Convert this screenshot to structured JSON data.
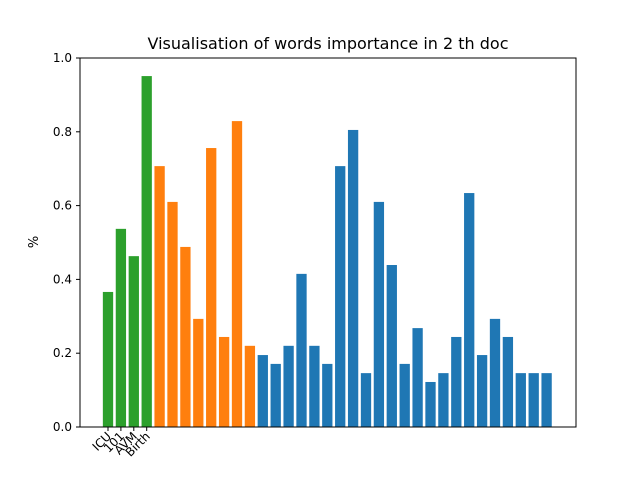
{
  "chart_data": {
    "type": "bar",
    "title": "Visualisation of words importance in 2 th doc",
    "xlabel": "",
    "ylabel": "%",
    "ylim": [
      0,
      1.0
    ],
    "yticks": [
      "0.0",
      "0.2",
      "0.4",
      "0.6",
      "0.8",
      "1.0"
    ],
    "xtick_labels": [
      "ICU",
      "101",
      "AVM",
      "Birth"
    ],
    "grid": false,
    "legend": "none",
    "colors": {
      "green": "#2ca02c",
      "orange": "#ff7f0e",
      "blue": "#1f77b4"
    },
    "values": [
      0.366,
      0.537,
      0.463,
      0.951,
      0.707,
      0.61,
      0.488,
      0.293,
      0.756,
      0.244,
      0.829,
      0.22,
      0.195,
      0.171,
      0.22,
      0.415,
      0.22,
      0.171,
      0.707,
      0.805,
      0.146,
      0.61,
      0.439,
      0.171,
      0.268,
      0.122,
      0.146,
      0.244,
      0.634,
      0.195,
      0.293,
      0.244,
      0.146,
      0.146,
      0.146
    ],
    "bar_colors": [
      "green",
      "green",
      "green",
      "green",
      "orange",
      "orange",
      "orange",
      "orange",
      "orange",
      "orange",
      "orange",
      "orange",
      "blue",
      "blue",
      "blue",
      "blue",
      "blue",
      "blue",
      "blue",
      "blue",
      "blue",
      "blue",
      "blue",
      "blue",
      "blue",
      "blue",
      "blue",
      "blue",
      "blue",
      "blue",
      "blue",
      "blue",
      "blue",
      "blue",
      "blue"
    ]
  }
}
